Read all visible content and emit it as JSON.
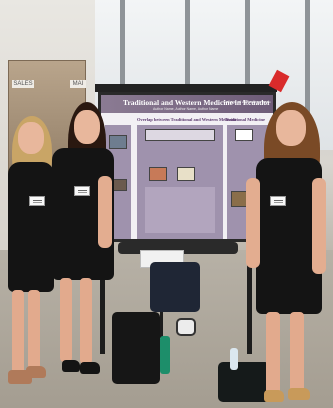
{
  "scene": {
    "description_hidden": "",
    "colors": {
      "poster_purple": "#8b7b93",
      "dress_black": "#141414",
      "tag_red": "#d92b2b"
    }
  },
  "wall_signs": {
    "left": "SALES",
    "right": "MAI"
  },
  "poster": {
    "title": "Traditional and Western Medicine in Ecuador",
    "authors": "Author Name, Author Name, Author Name",
    "institution": "College of Agriculture and",
    "subheading_left": "Overlap between Traditional and Western Medicine",
    "subheading_right": "Traditional Medicine"
  }
}
